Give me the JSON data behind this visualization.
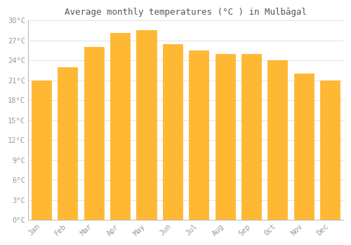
{
  "months": [
    "Jan",
    "Feb",
    "Mar",
    "Apr",
    "May",
    "Jun",
    "Jul",
    "Aug",
    "Sep",
    "Oct",
    "Nov",
    "Dec"
  ],
  "values": [
    21.0,
    23.0,
    26.0,
    28.2,
    28.6,
    26.5,
    25.5,
    25.0,
    25.0,
    24.0,
    22.0,
    21.0
  ],
  "bar_color_top": "#FFA500",
  "bar_color_bottom": "#FFD700",
  "bar_color": "#FFB833",
  "bar_edge_color": "#FFA500",
  "background_color": "#FFFFFF",
  "grid_color": "#DDDDDD",
  "title": "Average monthly temperatures (°C ) in Mulbāgal",
  "title_fontsize": 9,
  "ylim": [
    0,
    30
  ],
  "ytick_interval": 3,
  "tick_label_color": "#999999",
  "tick_label_fontsize": 7.5,
  "title_color": "#555555",
  "font_family": "DejaVu Sans Mono"
}
